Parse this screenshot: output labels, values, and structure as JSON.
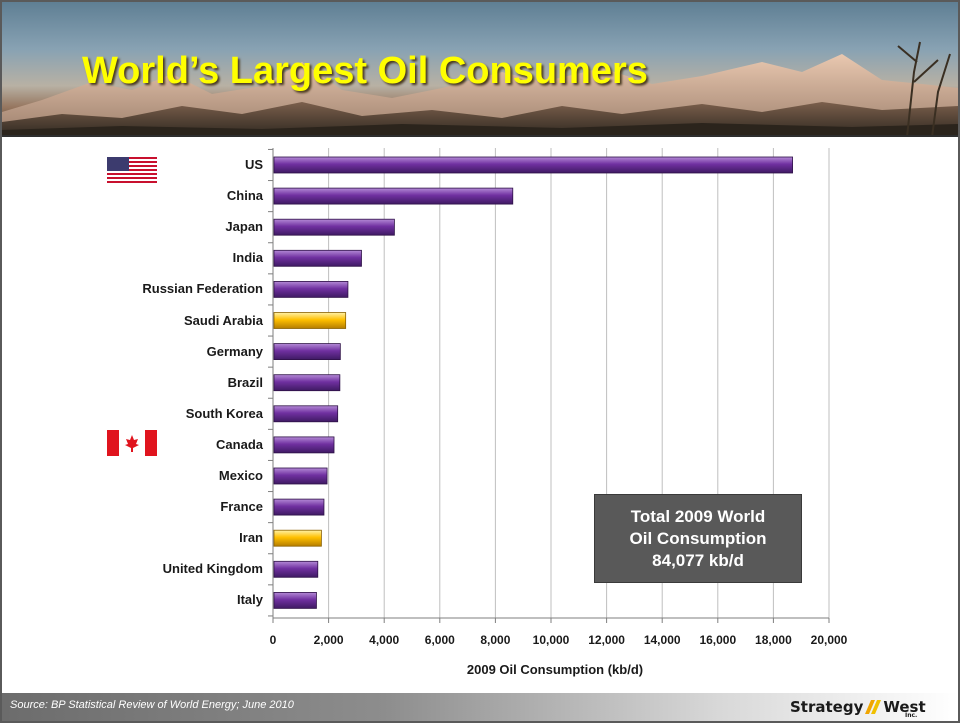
{
  "slide": {
    "title": "World’s Largest Oil Consumers",
    "source": "Source: BP Statistical Review of World Energy; June 2010",
    "logo_text_1": "Strategy",
    "logo_text_2": "West",
    "logo_suffix": "Inc.",
    "total_box": {
      "line1": "Total 2009 World",
      "line2": "Oil Consumption",
      "line3": "84,077 kb/d"
    },
    "flags": [
      "us-flag-icon",
      "canada-flag-icon"
    ]
  },
  "chart_data": {
    "type": "bar",
    "orientation": "horizontal",
    "title": "",
    "xlabel": "2009 Oil Consumption  (kb/d)",
    "ylabel": "",
    "xlim": [
      0,
      20000
    ],
    "x_ticks": [
      0,
      2000,
      4000,
      6000,
      8000,
      10000,
      12000,
      14000,
      16000,
      18000,
      20000
    ],
    "x_tick_labels": [
      "0",
      "2,000",
      "4,000",
      "6,000",
      "8,000",
      "10,000",
      "12,000",
      "14,000",
      "16,000",
      "18,000",
      "20,000"
    ],
    "grid": "vertical",
    "categories": [
      "US",
      "China",
      "Japan",
      "India",
      "Russian Federation",
      "Saudi Arabia",
      "Germany",
      "Brazil",
      "South Korea",
      "Canada",
      "Mexico",
      "France",
      "Iran",
      "United Kingdom",
      "Italy"
    ],
    "values": [
      18690,
      8625,
      4367,
      3183,
      2695,
      2614,
      2422,
      2405,
      2327,
      2195,
      1945,
      1833,
      1741,
      1611,
      1563
    ],
    "highlighted": [
      "Saudi Arabia",
      "Iran"
    ],
    "colors": {
      "bar": "#7030a0",
      "bar_highlight": "#ffc000",
      "grid": "#bfbfbf"
    }
  }
}
